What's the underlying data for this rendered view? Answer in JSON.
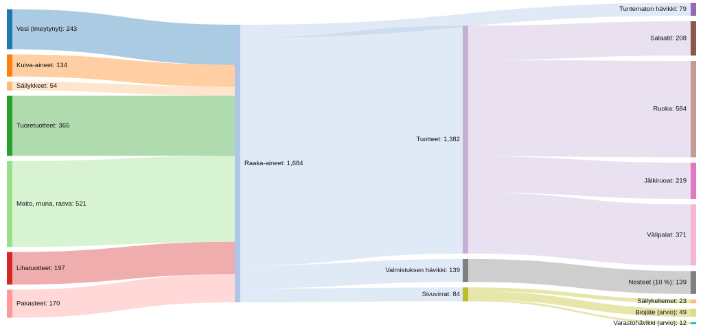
{
  "chart_data": {
    "type": "sankey",
    "title": "",
    "nodes": [
      {
        "id": "vesi",
        "label": "Vesi (imeytynyt): 243",
        "value": 243,
        "color": "#1f77b4",
        "column": 0
      },
      {
        "id": "kuiva",
        "label": "Kuiva-aineet: 134",
        "value": 134,
        "color": "#ff7f0e",
        "column": 0
      },
      {
        "id": "sailykkeet",
        "label": "Säilykkeet: 54",
        "value": 54,
        "color": "#ffbb78",
        "column": 0
      },
      {
        "id": "tuore",
        "label": "Tuoretuotteet: 365",
        "value": 365,
        "color": "#2ca02c",
        "column": 0
      },
      {
        "id": "maito",
        "label": "Maito, muna, rasva: 521",
        "value": 521,
        "color": "#98df8a",
        "column": 0
      },
      {
        "id": "liha",
        "label": "Lihatuotteet: 197",
        "value": 197,
        "color": "#d62728",
        "column": 0
      },
      {
        "id": "pakasteet",
        "label": "Pakasteet: 170",
        "value": 170,
        "color": "#ff9896",
        "column": 0
      },
      {
        "id": "raaka",
        "label": "Raaka-aineet: 1,684",
        "value": 1684,
        "color": "#aec7e8",
        "column": 1
      },
      {
        "id": "tuotteet",
        "label": "Tuotteet: 1,382",
        "value": 1382,
        "color": "#c5b0d5",
        "column": 2
      },
      {
        "id": "valmhav",
        "label": "Valmistuksen hävikki: 139",
        "value": 139,
        "color": "#7f7f7f",
        "column": 2
      },
      {
        "id": "sivuvirrat",
        "label": "Sivuvirrat: 84",
        "value": 84,
        "color": "#bcbd22",
        "column": 2
      },
      {
        "id": "tunthav",
        "label": "Tuntematon hävikki: 79",
        "value": 79,
        "color": "#9467bd",
        "column": 3
      },
      {
        "id": "salaatit",
        "label": "Salaatit: 208",
        "value": 208,
        "color": "#8c564b",
        "column": 3
      },
      {
        "id": "ruoka",
        "label": "Ruoka: 584",
        "value": 584,
        "color": "#c49c94",
        "column": 3
      },
      {
        "id": "jalki",
        "label": "Jälkiruoat: 219",
        "value": 219,
        "color": "#e377c2",
        "column": 3
      },
      {
        "id": "valipalat",
        "label": "Välipalat: 371",
        "value": 371,
        "color": "#f7b6d2",
        "column": 3
      },
      {
        "id": "nesteet",
        "label": "Nesteet (10 %): 139",
        "value": 139,
        "color": "#7f7f7f",
        "column": 3
      },
      {
        "id": "sailykeliemet",
        "label": "Säilykeliemet: 23",
        "value": 23,
        "color": "#ffbb78",
        "column": 3
      },
      {
        "id": "biojate",
        "label": "Biojäte (arvio): 49",
        "value": 49,
        "color": "#dbdb8d",
        "column": 3
      },
      {
        "id": "varasto",
        "label": "Varastohävikki (arvio): 12",
        "value": 12,
        "color": "#17becf",
        "column": 3
      }
    ],
    "links": [
      {
        "source": "vesi",
        "target": "raaka",
        "value": 243,
        "color": "#1f77b4"
      },
      {
        "source": "kuiva",
        "target": "raaka",
        "value": 134,
        "color": "#ff7f0e"
      },
      {
        "source": "sailykkeet",
        "target": "raaka",
        "value": 54,
        "color": "#ffbb78"
      },
      {
        "source": "tuore",
        "target": "raaka",
        "value": 365,
        "color": "#2ca02c"
      },
      {
        "source": "maito",
        "target": "raaka",
        "value": 521,
        "color": "#98df8a"
      },
      {
        "source": "liha",
        "target": "raaka",
        "value": 197,
        "color": "#d62728"
      },
      {
        "source": "pakasteet",
        "target": "raaka",
        "value": 170,
        "color": "#ff9896"
      },
      {
        "source": "raaka",
        "target": "tunthav",
        "value": 79,
        "color": "#aec7e8"
      },
      {
        "source": "raaka",
        "target": "tuotteet",
        "value": 1382,
        "color": "#aec7e8"
      },
      {
        "source": "raaka",
        "target": "valmhav",
        "value": 139,
        "color": "#aec7e8"
      },
      {
        "source": "raaka",
        "target": "sivuvirrat",
        "value": 84,
        "color": "#aec7e8"
      },
      {
        "source": "tuotteet",
        "target": "salaatit",
        "value": 208,
        "color": "#c5b0d5"
      },
      {
        "source": "tuotteet",
        "target": "ruoka",
        "value": 584,
        "color": "#c5b0d5"
      },
      {
        "source": "tuotteet",
        "target": "jalki",
        "value": 219,
        "color": "#c5b0d5"
      },
      {
        "source": "tuotteet",
        "target": "valipalat",
        "value": 371,
        "color": "#c5b0d5"
      },
      {
        "source": "valmhav",
        "target": "nesteet",
        "value": 139,
        "color": "#7f7f7f"
      },
      {
        "source": "sivuvirrat",
        "target": "sailykeliemet",
        "value": 23,
        "color": "#bcbd22"
      },
      {
        "source": "sivuvirrat",
        "target": "biojate",
        "value": 49,
        "color": "#bcbd22"
      },
      {
        "source": "sivuvirrat",
        "target": "varasto",
        "value": 12,
        "color": "#bcbd22"
      }
    ]
  }
}
